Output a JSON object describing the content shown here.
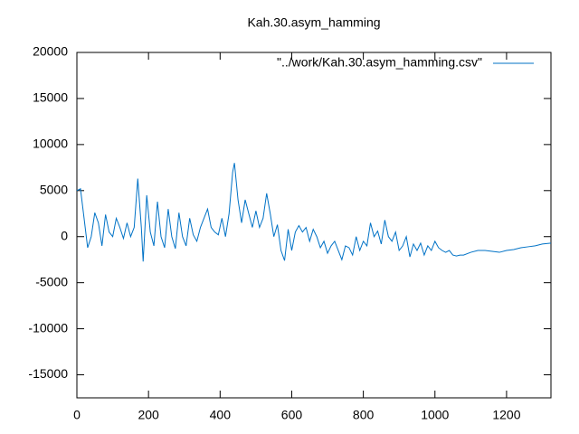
{
  "chart_data": {
    "type": "line",
    "title": "Kah.30.asym_hamming",
    "x": [
      0,
      10,
      20,
      30,
      40,
      50,
      60,
      70,
      80,
      90,
      100,
      110,
      120,
      130,
      140,
      150,
      160,
      170,
      180,
      185,
      195,
      205,
      215,
      225,
      235,
      245,
      255,
      265,
      275,
      285,
      295,
      305,
      315,
      325,
      335,
      345,
      355,
      365,
      375,
      385,
      395,
      405,
      415,
      425,
      435,
      440,
      450,
      460,
      470,
      480,
      490,
      500,
      510,
      520,
      530,
      540,
      550,
      560,
      570,
      580,
      590,
      600,
      610,
      620,
      630,
      640,
      650,
      660,
      670,
      680,
      690,
      700,
      710,
      720,
      730,
      740,
      750,
      760,
      770,
      780,
      790,
      800,
      810,
      820,
      830,
      840,
      850,
      860,
      870,
      880,
      890,
      900,
      910,
      920,
      930,
      940,
      950,
      960,
      970,
      980,
      990,
      1000,
      1010,
      1020,
      1030,
      1040,
      1050,
      1060,
      1070,
      1080,
      1100,
      1120,
      1140,
      1160,
      1180,
      1200,
      1220,
      1240,
      1260,
      1280,
      1300,
      1324
    ],
    "series": [
      {
        "name": "\"../work/Kah.30.asym_hamming.csv\"",
        "color": "#0072c6",
        "values": [
          5000,
          5200,
          2000,
          -1200,
          0,
          2600,
          1500,
          -1000,
          2400,
          500,
          0,
          2000,
          1000,
          -200,
          1500,
          0,
          1000,
          6300,
          1000,
          -2700,
          4500,
          500,
          -1000,
          3800,
          0,
          -1200,
          3000,
          0,
          -1300,
          2600,
          0,
          -1000,
          2000,
          200,
          -500,
          1000,
          2000,
          3000,
          1000,
          500,
          200,
          2000,
          0,
          2500,
          7000,
          8000,
          4000,
          1500,
          4000,
          2500,
          1000,
          2800,
          1000,
          2000,
          4700,
          2500,
          0,
          1300,
          -1500,
          -2600,
          800,
          -1500,
          500,
          1200,
          500,
          1000,
          -500,
          800,
          0,
          -1200,
          -500,
          -1800,
          -1000,
          -500,
          -1500,
          -2500,
          -1000,
          -1200,
          -2000,
          0,
          -1500,
          -500,
          -1000,
          1500,
          0,
          600,
          -800,
          1800,
          0,
          -500,
          500,
          -1500,
          -1000,
          0,
          -2200,
          -800,
          -1500,
          -700,
          -2000,
          -1000,
          -1500,
          -500,
          -1200,
          -1500,
          -1700,
          -1500,
          -2000,
          -2100,
          -2000,
          -2000,
          -1700,
          -1500,
          -1500,
          -1600,
          -1700,
          -1500,
          -1400,
          -1200,
          -1100,
          -1000,
          -800,
          -700
        ]
      }
    ],
    "xlim": [
      0,
      1324
    ],
    "ylim": [
      -17500,
      20000
    ],
    "xticks": [
      0,
      200,
      400,
      600,
      800,
      1000,
      1200
    ],
    "yticks": [
      -15000,
      -10000,
      -5000,
      0,
      5000,
      10000,
      15000,
      20000
    ],
    "legend": "top-right"
  }
}
